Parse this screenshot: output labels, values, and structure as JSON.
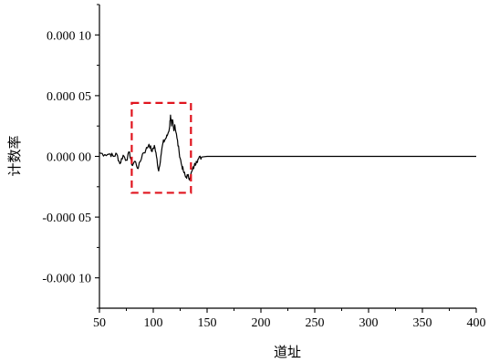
{
  "chart_data": {
    "type": "line",
    "title": "",
    "xlabel": "道址",
    "ylabel": "计数率",
    "xlim": [
      50,
      400
    ],
    "ylim": [
      -0.000125,
      0.000125
    ],
    "x_ticks": [
      50,
      100,
      150,
      200,
      250,
      300,
      350,
      400
    ],
    "x_tick_labels": [
      "50",
      "100",
      "150",
      "200",
      "250",
      "300",
      "350",
      "400"
    ],
    "y_ticks": [
      0.0001,
      5e-05,
      0,
      -5e-05,
      -0.0001
    ],
    "y_tick_labels": [
      "0.000 10",
      "0.000 05",
      "0.000 00",
      "-0.000 05",
      "-0.000 10"
    ],
    "grid": false,
    "legend": "none",
    "line_color": "#000000",
    "series": [
      {
        "x": [
          50,
          55,
          60,
          63,
          66,
          69,
          72,
          75,
          78,
          80,
          83,
          86,
          90,
          93,
          96,
          99,
          101,
          103,
          105,
          107,
          109,
          111,
          113,
          115,
          116,
          117,
          118,
          119,
          120,
          122,
          124,
          126,
          128,
          130,
          132,
          134,
          136,
          138,
          140,
          142,
          145,
          150,
          170,
          200,
          250,
          300,
          350,
          400
        ],
        "y": [
          3e-06,
          1.5e-06,
          2e-06,
          0.0,
          2e-06,
          -6e-06,
          1e-06,
          -3e-06,
          3.5e-06,
          -7e-06,
          -4e-06,
          -1e-05,
          2e-06,
          5e-06,
          1e-05,
          4e-06,
          9e-06,
          0.0,
          -1.2e-05,
          0.0,
          1.1e-05,
          1.4e-05,
          1.7e-05,
          2.3e-05,
          3.4e-05,
          2.5e-05,
          3e-05,
          2.2e-05,
          2.6e-05,
          1.5e-05,
          4e-06,
          -6e-06,
          -1.2e-05,
          -1.7e-05,
          -1.6e-05,
          -1.8e-05,
          -1.2e-05,
          -8e-06,
          -4e-06,
          -2e-06,
          -5e-07,
          0.0,
          0.0,
          0.0,
          0.0,
          0.0,
          0.0,
          0.0
        ]
      }
    ],
    "annotation_box": {
      "style": "dashed",
      "color": "#e0141e",
      "x_range": [
        80,
        135
      ],
      "y_range": [
        -3e-05,
        4.4e-05
      ]
    }
  }
}
